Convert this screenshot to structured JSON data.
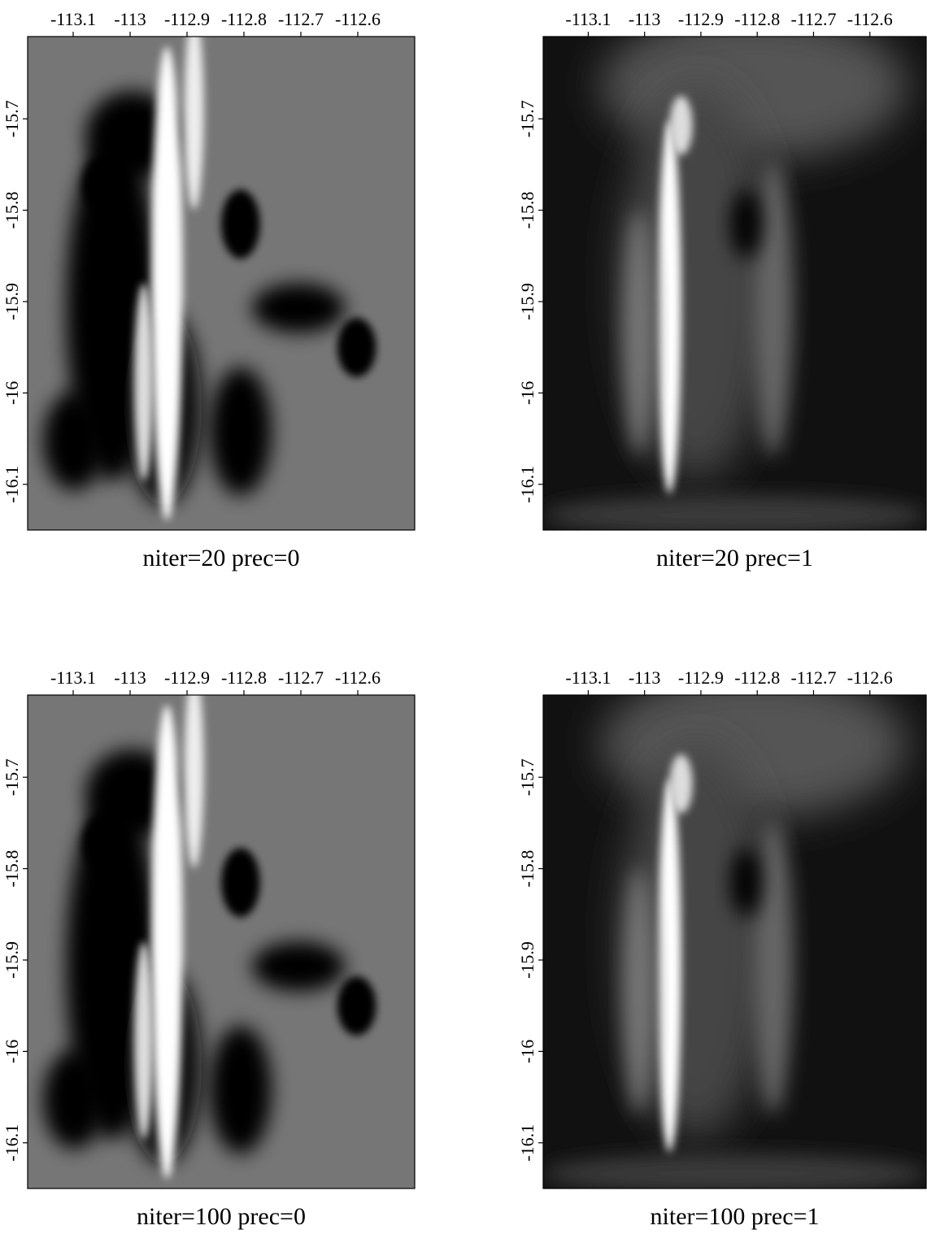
{
  "chart_data": [
    {
      "type": "image",
      "title": "niter=20 prec=0",
      "xlim": [
        -113.18,
        -112.5
      ],
      "xticks": [
        -113.1,
        -113,
        -112.9,
        -112.8,
        -112.7,
        -112.6
      ],
      "ylim": [
        -16.15,
        -15.61
      ],
      "yticks": [
        -15.7,
        -15.8,
        -15.9,
        -16,
        -16.1
      ]
    },
    {
      "type": "image",
      "title": "niter=20 prec=1",
      "xlim": [
        -113.18,
        -112.5
      ],
      "xticks": [
        -113.1,
        -113,
        -112.9,
        -112.8,
        -112.7,
        -112.6
      ],
      "ylim": [
        -16.15,
        -15.61
      ],
      "yticks": [
        -15.7,
        -15.8,
        -15.9,
        -16,
        -16.1
      ]
    },
    {
      "type": "image",
      "title": "niter=100 prec=0",
      "xlim": [
        -113.18,
        -112.5
      ],
      "xticks": [
        -113.1,
        -113,
        -112.9,
        -112.8,
        -112.7,
        -112.6
      ],
      "ylim": [
        -16.15,
        -15.61
      ],
      "yticks": [
        -15.7,
        -15.8,
        -15.9,
        -16,
        -16.1
      ]
    },
    {
      "type": "image",
      "title": "niter=100 prec=1",
      "xlim": [
        -113.18,
        -112.5
      ],
      "xticks": [
        -113.1,
        -113,
        -112.9,
        -112.8,
        -112.7,
        -112.6
      ],
      "ylim": [
        -16.15,
        -15.61
      ],
      "yticks": [
        -15.7,
        -15.8,
        -15.9,
        -16,
        -16.1
      ]
    }
  ]
}
